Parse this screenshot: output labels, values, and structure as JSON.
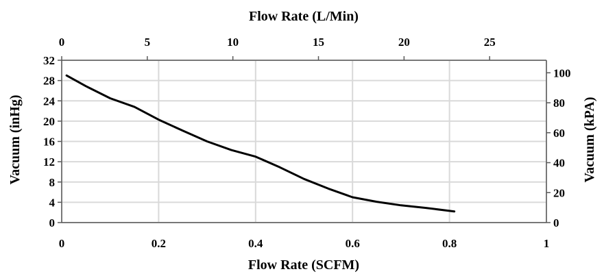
{
  "chart_data": {
    "type": "line",
    "title": "",
    "xlabel": "Flow Rate (SCFM)",
    "ylabel": "Vacuum (inHg)",
    "x2label": "Flow Rate (L/Min)",
    "y2label": "Vacuum (kPA)",
    "xlim": [
      0,
      1
    ],
    "ylim": [
      0,
      32
    ],
    "x2lim": [
      0,
      28.3168
    ],
    "y2lim": [
      0,
      108.365
    ],
    "x_ticks": [
      "0",
      "0.2",
      "0.4",
      "0.6",
      "0.8",
      "1"
    ],
    "y_ticks": [
      "0",
      "4",
      "8",
      "12",
      "16",
      "20",
      "24",
      "28",
      "32"
    ],
    "x2_ticks": [
      "0",
      "5",
      "10",
      "15",
      "20",
      "25"
    ],
    "y2_ticks": [
      "0",
      "20",
      "40",
      "60",
      "80",
      "100"
    ],
    "grid": "vertical and horizontal",
    "legend": "none",
    "line_color": "#000000",
    "grid_color": "#d9d9d9",
    "series": [
      {
        "x": [
          0.01,
          0.05,
          0.1,
          0.15,
          0.2,
          0.25,
          0.3,
          0.35,
          0.4,
          0.45,
          0.5,
          0.55,
          0.6,
          0.65,
          0.7,
          0.75,
          0.81
        ],
        "y": [
          29.0,
          26.9,
          24.5,
          22.8,
          20.3,
          18.1,
          16.0,
          14.3,
          13.0,
          10.9,
          8.6,
          6.7,
          5.0,
          4.1,
          3.4,
          2.9,
          2.2
        ]
      }
    ]
  }
}
